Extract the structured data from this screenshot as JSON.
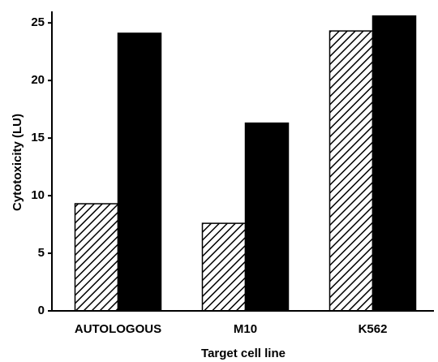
{
  "chart_data": {
    "type": "bar",
    "x_label": "Target cell line",
    "y_label": "Cytotoxicity (LU)",
    "categories": [
      "AUTOLOGOUS",
      "M10",
      "K562"
    ],
    "series": [
      {
        "color": "#000000",
        "pattern": "hatch",
        "values": [
          9.3,
          7.6,
          24.3
        ]
      },
      {
        "color": "#000000",
        "pattern": "solid",
        "values": [
          24.1,
          16.3,
          25.6
        ]
      }
    ],
    "ylim": [
      0,
      26
    ],
    "yticks": [
      0,
      5,
      10,
      15,
      20,
      25
    ],
    "grid": false
  }
}
